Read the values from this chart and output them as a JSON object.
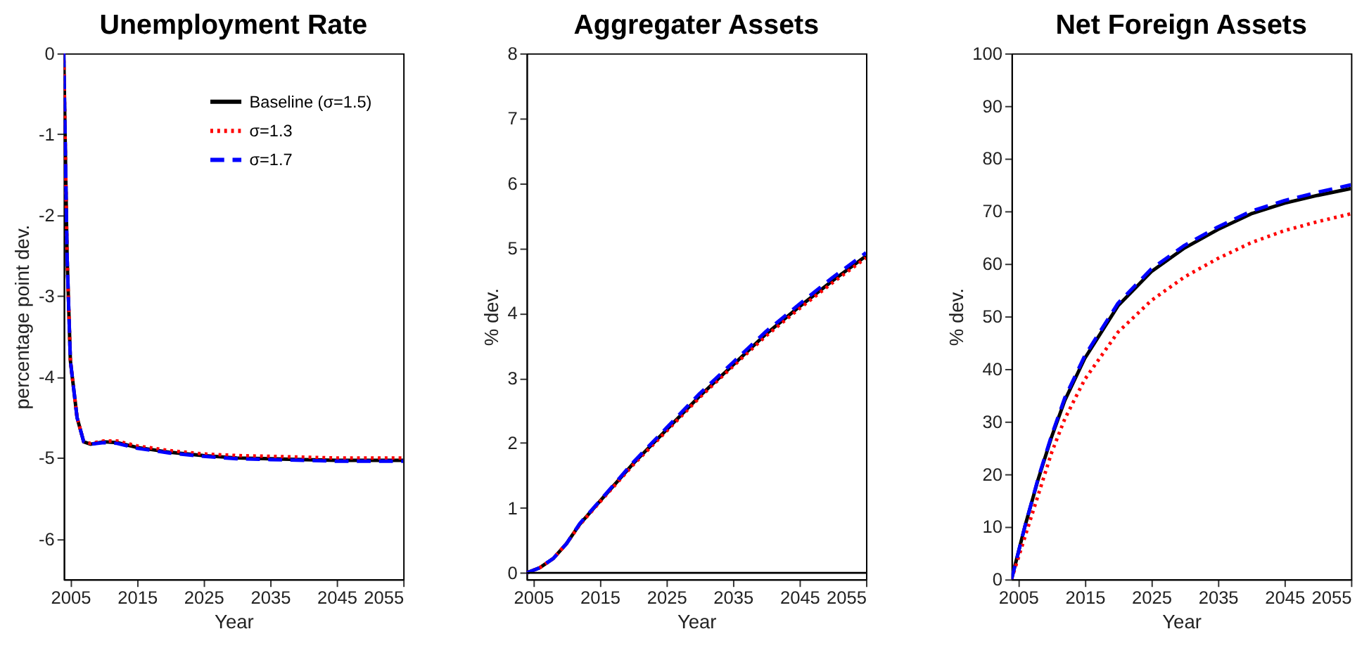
{
  "chart_data": [
    {
      "type": "line",
      "title": "Unemployment Rate",
      "xlabel": "Year",
      "ylabel": "percentage point dev.",
      "xlim": [
        2004,
        2055
      ],
      "xticks": [
        2005,
        2015,
        2025,
        2035,
        2045,
        2055
      ],
      "ylim": [
        -6.5,
        0
      ],
      "yticks": [
        0,
        -1,
        -2,
        -3,
        -4,
        -5,
        -6
      ],
      "grid": false,
      "legend": "top right",
      "x": [
        2004,
        2004.5,
        2005,
        2006,
        2007,
        2008,
        2010,
        2012,
        2015,
        2020,
        2025,
        2030,
        2035,
        2040,
        2045,
        2050,
        2055
      ],
      "series": [
        {
          "name": "Baseline (σ=1.5)",
          "color": "#000000",
          "line_style": "solid",
          "values": [
            0,
            -2.5,
            -3.8,
            -4.5,
            -4.8,
            -4.83,
            -4.8,
            -4.81,
            -4.87,
            -4.93,
            -4.97,
            -5.0,
            -5.01,
            -5.02,
            -5.03,
            -5.03,
            -5.03
          ]
        },
        {
          "name": "σ=1.3",
          "color": "#ff0000",
          "line_style": "dotted",
          "values": [
            0,
            -2.5,
            -3.8,
            -4.5,
            -4.8,
            -4.82,
            -4.79,
            -4.79,
            -4.85,
            -4.91,
            -4.95,
            -4.97,
            -4.98,
            -4.99,
            -5.0,
            -5.0,
            -5.0
          ]
        },
        {
          "name": "σ=1.7",
          "color": "#0000ff",
          "line_style": "dashed",
          "values": [
            0,
            -2.5,
            -3.8,
            -4.5,
            -4.8,
            -4.83,
            -4.81,
            -4.82,
            -4.88,
            -4.94,
            -4.98,
            -5.01,
            -5.02,
            -5.03,
            -5.04,
            -5.04,
            -5.04
          ]
        }
      ]
    },
    {
      "type": "line",
      "title": "Aggregater Assets",
      "xlabel": "Year",
      "ylabel": "% dev.",
      "xlim": [
        2004,
        2055
      ],
      "xticks": [
        2005,
        2015,
        2025,
        2035,
        2045,
        2055
      ],
      "ylim": [
        -0.1,
        8
      ],
      "yticks": [
        0,
        1,
        2,
        3,
        4,
        5,
        6,
        7,
        8
      ],
      "grid": false,
      "legend": false,
      "ref_lines": [
        {
          "axis": "y",
          "value": 0,
          "color": "#000000"
        }
      ],
      "x": [
        2004,
        2006,
        2008,
        2010,
        2012,
        2015,
        2020,
        2025,
        2030,
        2035,
        2040,
        2045,
        2050,
        2055
      ],
      "series": [
        {
          "color": "#000000",
          "line_style": "solid",
          "values": [
            0,
            0.08,
            0.22,
            0.45,
            0.75,
            1.1,
            1.68,
            2.2,
            2.72,
            3.2,
            3.68,
            4.1,
            4.5,
            4.88
          ]
        },
        {
          "color": "#ff0000",
          "line_style": "dotted",
          "values": [
            0,
            0.08,
            0.22,
            0.45,
            0.74,
            1.09,
            1.66,
            2.18,
            2.7,
            3.18,
            3.65,
            4.07,
            4.47,
            4.85
          ]
        },
        {
          "color": "#0000ff",
          "line_style": "dashed",
          "values": [
            0,
            0.08,
            0.22,
            0.45,
            0.76,
            1.11,
            1.7,
            2.23,
            2.76,
            3.24,
            3.72,
            4.14,
            4.55,
            4.93
          ]
        }
      ]
    },
    {
      "type": "line",
      "title": "Net Foreign Assets",
      "xlabel": "Year",
      "ylabel": "% dev.",
      "xlim": [
        2004,
        2055
      ],
      "xticks": [
        2005,
        2015,
        2025,
        2035,
        2045,
        2055
      ],
      "ylim": [
        0,
        100
      ],
      "yticks": [
        0,
        10,
        20,
        30,
        40,
        50,
        60,
        70,
        80,
        90,
        100
      ],
      "grid": false,
      "legend": false,
      "x": [
        2004,
        2006,
        2008,
        2010,
        2012,
        2015,
        2020,
        2025,
        2030,
        2035,
        2040,
        2045,
        2050,
        2055
      ],
      "series": [
        {
          "color": "#000000",
          "line_style": "solid",
          "values": [
            0,
            10,
            19,
            27,
            34,
            42,
            52,
            58.5,
            63,
            66.5,
            69.5,
            71.5,
            73,
            74.3
          ]
        },
        {
          "color": "#ff0000",
          "line_style": "dotted",
          "values": [
            0,
            8,
            16,
            24,
            30.5,
            38,
            47,
            53,
            57.5,
            61,
            64,
            66.3,
            68,
            69.5
          ]
        },
        {
          "color": "#0000ff",
          "line_style": "dashed",
          "values": [
            0,
            10,
            19.2,
            27.3,
            34.5,
            42.5,
            52.5,
            59,
            63.5,
            67,
            70,
            72,
            73.6,
            75
          ]
        }
      ]
    }
  ]
}
